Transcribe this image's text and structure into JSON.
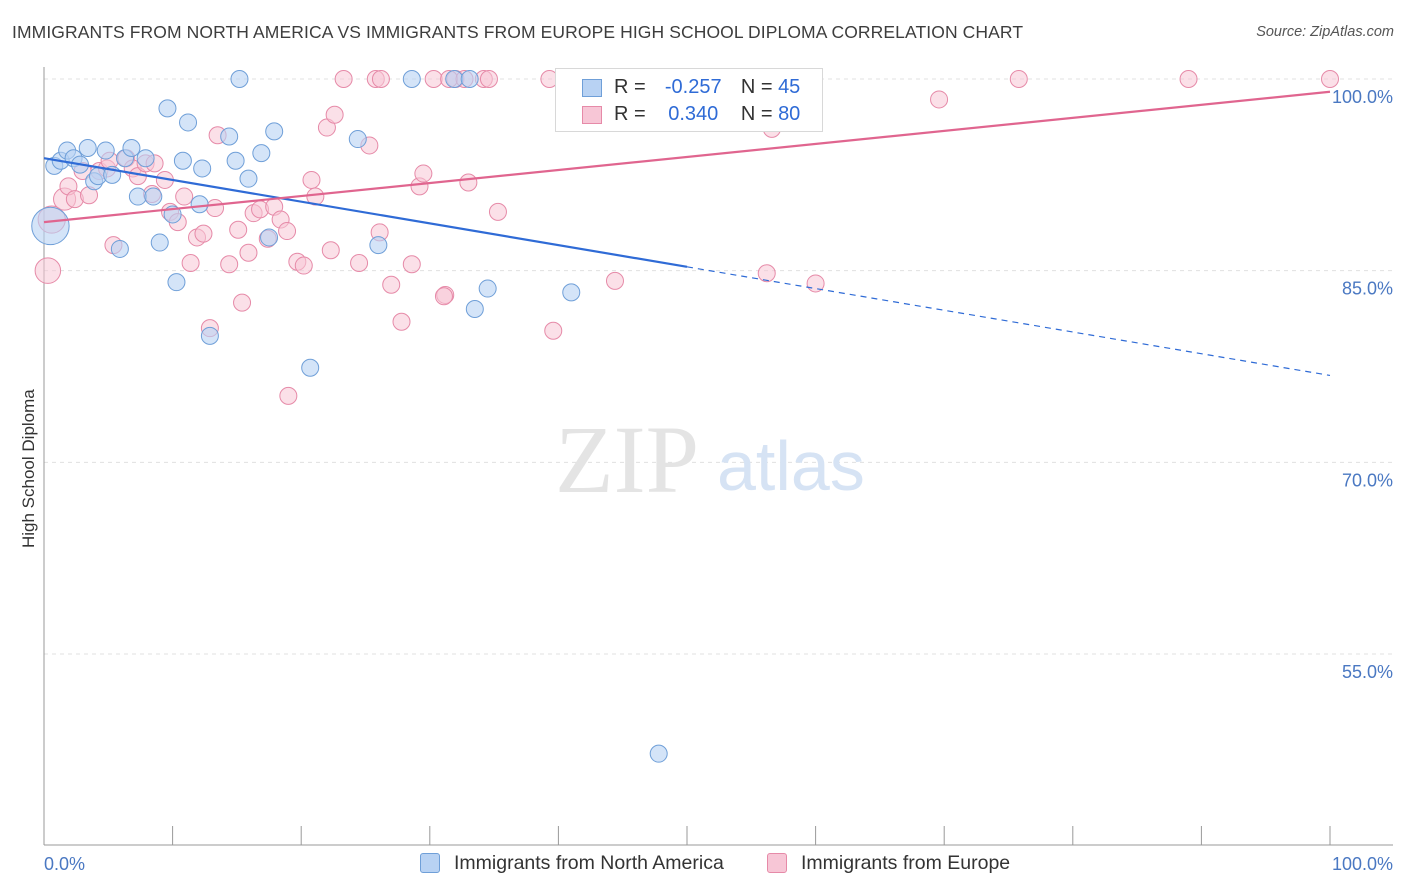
{
  "title": "IMMIGRANTS FROM NORTH AMERICA VS IMMIGRANTS FROM EUROPE HIGH SCHOOL DIPLOMA CORRELATION CHART",
  "source": "Source: ZipAtlas.com",
  "watermark": {
    "zip": "ZIP",
    "atlas": "atlas"
  },
  "legend": {
    "r_label": "R =",
    "n_label": "N =",
    "series1": {
      "r": "-0.257",
      "n": "45"
    },
    "series2": {
      "r": "0.340",
      "n": "80"
    }
  },
  "colors": {
    "north_america_fill": "#b8d2f3",
    "north_america_stroke": "#6f9fd8",
    "north_america_line": "#2f6bd6",
    "europe_fill": "#f7c6d6",
    "europe_stroke": "#e68aa8",
    "europe_line": "#e0658f",
    "tick_label": "#4a78c2",
    "grid": "#e0e0e0"
  },
  "chart_data": {
    "type": "scatter",
    "title": "IMMIGRANTS FROM NORTH AMERICA VS IMMIGRANTS FROM EUROPE HIGH SCHOOL DIPLOMA CORRELATION CHART",
    "xlabel": "",
    "ylabel": "High School Diploma",
    "xlim": [
      0,
      100
    ],
    "ylim": [
      40,
      101
    ],
    "x_ticks_labels": [
      "0.0%",
      "100.0%"
    ],
    "y_ticks": [
      55,
      70,
      85,
      100
    ],
    "y_tick_labels": [
      "55.0%",
      "70.0%",
      "85.0%",
      "100.0%"
    ],
    "grid": true,
    "legend_position": "top-center",
    "series": [
      {
        "name": "Immigrants from North America",
        "r": -0.257,
        "n": 45,
        "trend": {
          "x0": 0,
          "y0": 93.8,
          "x1": 50,
          "y1": 85.3,
          "dashed_to_x": 100,
          "dashed_to_y": 76.8
        },
        "points": [
          [
            0.5,
            88.5,
            2.2
          ],
          [
            0.8,
            93.2,
            1
          ],
          [
            1.3,
            93.6,
            1
          ],
          [
            1.8,
            94.4,
            1
          ],
          [
            2.3,
            93.8,
            1
          ],
          [
            2.8,
            93.3,
            1
          ],
          [
            3.4,
            94.6,
            1
          ],
          [
            3.9,
            92.0,
            1
          ],
          [
            4.2,
            92.4,
            1
          ],
          [
            4.8,
            94.4,
            1
          ],
          [
            5.3,
            92.5,
            1
          ],
          [
            5.9,
            86.7,
            1
          ],
          [
            6.3,
            93.8,
            1
          ],
          [
            6.8,
            94.6,
            1
          ],
          [
            7.3,
            90.8,
            1
          ],
          [
            7.9,
            93.8,
            1
          ],
          [
            8.5,
            90.8,
            1
          ],
          [
            9.0,
            87.2,
            1
          ],
          [
            9.6,
            97.7,
            1
          ],
          [
            10.0,
            89.4,
            1
          ],
          [
            10.3,
            84.1,
            1
          ],
          [
            10.8,
            93.6,
            1
          ],
          [
            11.2,
            96.6,
            1
          ],
          [
            12.1,
            90.2,
            1
          ],
          [
            12.3,
            93.0,
            1
          ],
          [
            12.9,
            79.9,
            1
          ],
          [
            14.4,
            95.5,
            1
          ],
          [
            14.9,
            93.6,
            1
          ],
          [
            15.2,
            100.0,
            1
          ],
          [
            15.9,
            92.2,
            1
          ],
          [
            16.9,
            94.2,
            1
          ],
          [
            17.5,
            87.6,
            1
          ],
          [
            17.9,
            95.9,
            1
          ],
          [
            20.7,
            77.4,
            1
          ],
          [
            24.4,
            95.3,
            1
          ],
          [
            26.0,
            87.0,
            1
          ],
          [
            28.6,
            100.0,
            1
          ],
          [
            31.9,
            100.0,
            1
          ],
          [
            33.1,
            100.0,
            1
          ],
          [
            33.5,
            82.0,
            1
          ],
          [
            34.5,
            83.6,
            1
          ],
          [
            41.0,
            83.3,
            1
          ],
          [
            47.4,
            100.0,
            1
          ],
          [
            50.1,
            100.0,
            1
          ],
          [
            47.8,
            47.2,
            1
          ]
        ]
      },
      {
        "name": "Immigrants from Europe",
        "r": 0.34,
        "n": 80,
        "trend": {
          "x0": 0,
          "y0": 88.8,
          "x1": 100,
          "y1": 99.0
        },
        "points": [
          [
            0.3,
            85.0,
            1.5
          ],
          [
            0.6,
            89.0,
            1.6
          ],
          [
            1.6,
            90.6,
            1.3
          ],
          [
            1.9,
            91.6,
            1
          ],
          [
            2.4,
            90.6,
            1
          ],
          [
            3.0,
            92.8,
            1
          ],
          [
            3.5,
            90.9,
            1
          ],
          [
            4.3,
            92.8,
            1
          ],
          [
            4.9,
            93.0,
            1
          ],
          [
            5.4,
            87.0,
            1
          ],
          [
            6.4,
            93.8,
            1
          ],
          [
            6.9,
            93.0,
            1
          ],
          [
            7.3,
            92.4,
            1
          ],
          [
            7.9,
            93.4,
            1
          ],
          [
            8.4,
            91.0,
            1
          ],
          [
            9.4,
            92.1,
            1
          ],
          [
            9.8,
            89.6,
            1
          ],
          [
            10.4,
            88.8,
            1
          ],
          [
            10.9,
            90.8,
            1
          ],
          [
            11.4,
            85.6,
            1
          ],
          [
            11.9,
            87.6,
            1
          ],
          [
            12.4,
            87.9,
            1
          ],
          [
            12.9,
            80.5,
            1
          ],
          [
            13.3,
            89.9,
            1
          ],
          [
            13.5,
            95.6,
            1
          ],
          [
            14.4,
            85.5,
            1
          ],
          [
            15.1,
            88.2,
            1
          ],
          [
            15.4,
            82.5,
            1
          ],
          [
            15.9,
            86.4,
            1
          ],
          [
            16.3,
            89.5,
            1
          ],
          [
            16.8,
            89.8,
            1
          ],
          [
            17.4,
            87.5,
            1
          ],
          [
            17.9,
            90.0,
            1
          ],
          [
            18.4,
            89.0,
            1
          ],
          [
            18.9,
            88.1,
            1
          ],
          [
            19.7,
            85.7,
            1
          ],
          [
            20.2,
            85.4,
            1
          ],
          [
            20.8,
            92.1,
            1
          ],
          [
            21.1,
            90.8,
            1
          ],
          [
            19.0,
            75.2,
            1
          ],
          [
            22.0,
            96.2,
            1
          ],
          [
            22.6,
            97.2,
            1
          ],
          [
            22.3,
            86.6,
            1
          ],
          [
            24.5,
            85.6,
            1
          ],
          [
            25.3,
            94.8,
            1
          ],
          [
            26.1,
            88.0,
            1
          ],
          [
            27.0,
            83.9,
            1
          ],
          [
            27.8,
            81.0,
            1
          ],
          [
            28.6,
            85.5,
            1
          ],
          [
            29.2,
            91.6,
            1
          ],
          [
            29.5,
            92.6,
            1
          ],
          [
            31.2,
            83.1,
            1
          ],
          [
            32.0,
            100.0,
            1
          ],
          [
            33.0,
            91.9,
            1
          ],
          [
            35.3,
            89.6,
            1
          ],
          [
            23.3,
            100.0,
            1
          ],
          [
            25.8,
            100.0,
            1
          ],
          [
            26.2,
            100.0,
            1
          ],
          [
            30.3,
            100.0,
            1
          ],
          [
            31.5,
            100.0,
            1
          ],
          [
            32.7,
            100.0,
            1
          ],
          [
            34.2,
            100.0,
            1
          ],
          [
            34.6,
            100.0,
            1
          ],
          [
            31.1,
            83.0,
            1
          ],
          [
            39.6,
            80.3,
            1
          ],
          [
            39.3,
            100.0,
            1
          ],
          [
            42.8,
            100.0,
            1
          ],
          [
            44.4,
            84.2,
            1
          ],
          [
            47.9,
            100.0,
            1
          ],
          [
            50.0,
            100.0,
            1
          ],
          [
            54.5,
            100.0,
            1
          ],
          [
            56.6,
            96.1,
            1
          ],
          [
            56.2,
            84.8,
            1
          ],
          [
            60.0,
            84.0,
            1
          ],
          [
            69.6,
            98.4,
            1
          ],
          [
            75.8,
            100.0,
            1
          ],
          [
            89.0,
            100.0,
            1
          ],
          [
            100.0,
            100.0,
            1
          ],
          [
            8.6,
            93.4,
            1
          ],
          [
            5.1,
            93.6,
            1
          ]
        ]
      }
    ]
  },
  "bottom_legend": {
    "series1_label": "Immigrants from North America",
    "series2_label": "Immigrants from Europe"
  }
}
